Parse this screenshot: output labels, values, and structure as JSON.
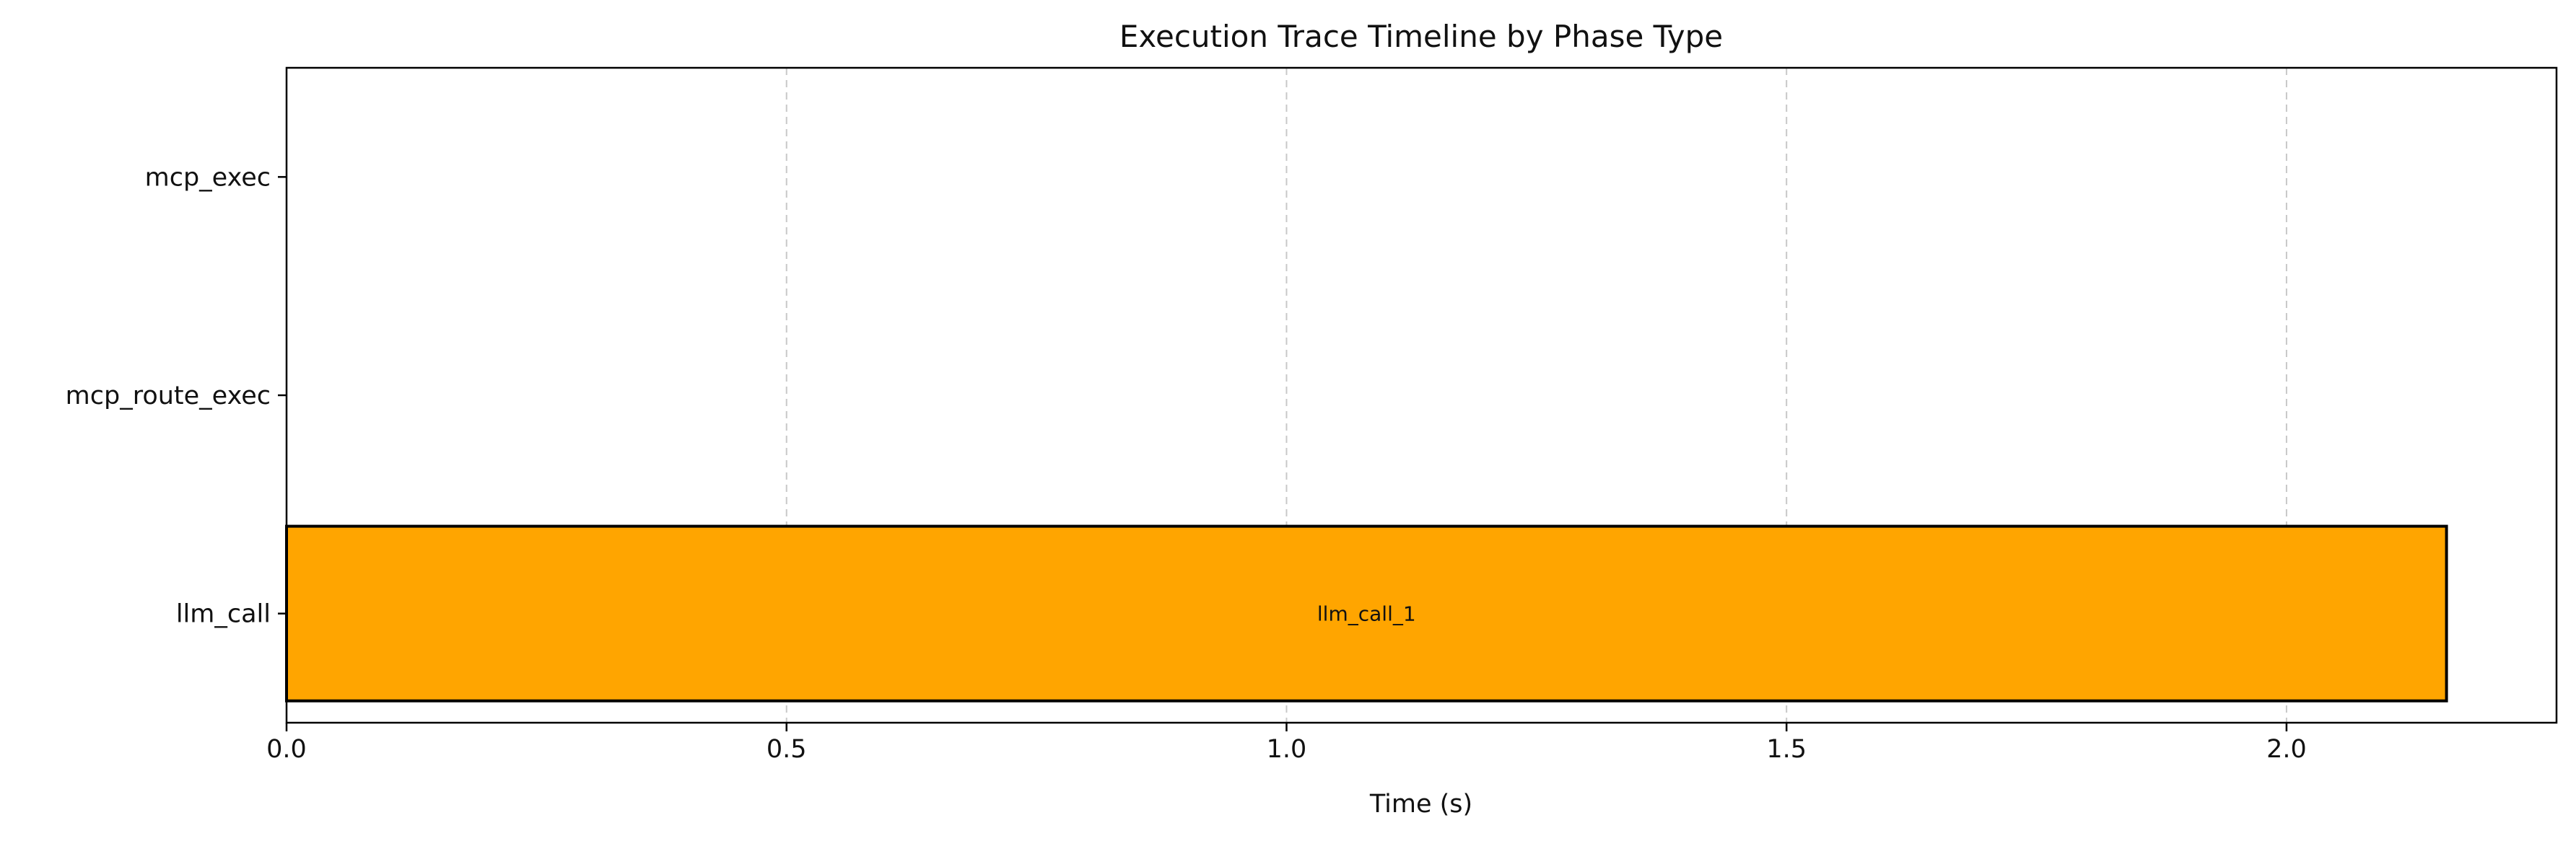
{
  "chart_data": {
    "type": "bar",
    "orientation": "horizontal",
    "title": "Execution Trace Timeline by Phase Type",
    "xlabel": "Time (s)",
    "ylabel": "",
    "xlim": [
      0,
      2.27
    ],
    "xticks": [
      "0.0",
      "0.5",
      "1.0",
      "1.5",
      "2.0"
    ],
    "categories": [
      "llm_call",
      "mcp_route_exec",
      "mcp_exec"
    ],
    "grid": "vertical dashed",
    "bars": [
      {
        "category": "llm_call",
        "start": 0.0,
        "end": 2.16,
        "label": "llm_call_1",
        "color": "#FFA500"
      }
    ]
  }
}
